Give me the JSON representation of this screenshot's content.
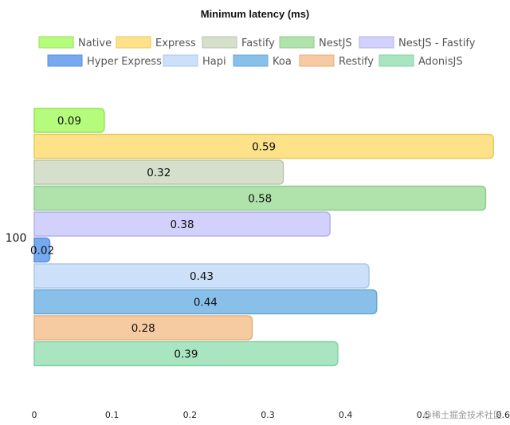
{
  "chart_data": {
    "type": "bar",
    "orientation": "horizontal",
    "title": "Minimum latency (ms)",
    "categories": [
      "100"
    ],
    "xlim": [
      0,
      0.6
    ],
    "x_ticks": [
      "0",
      "0.1",
      "0.2",
      "0.3",
      "0.4",
      "0.5",
      "0.6"
    ],
    "grid": false,
    "legend_position": "top",
    "series": [
      {
        "name": "Native",
        "values": [
          0.09
        ],
        "label": "0.09",
        "color": "#b5fb7c",
        "border": "#97e05a"
      },
      {
        "name": "Express",
        "values": [
          0.59
        ],
        "label": "0.59",
        "color": "#fde28a",
        "border": "#e8c85e"
      },
      {
        "name": "Fastify",
        "values": [
          0.32
        ],
        "label": "0.32",
        "color": "#d5dfcb",
        "border": "#b9c6ad"
      },
      {
        "name": "NestJS",
        "values": [
          0.58
        ],
        "label": "0.58",
        "color": "#b0e2ab",
        "border": "#8fcc89"
      },
      {
        "name": "NestJS - Fastify",
        "values": [
          0.38
        ],
        "label": "0.38",
        "color": "#d2d1fb",
        "border": "#b3b1ef"
      },
      {
        "name": "Hyper Express",
        "values": [
          0.02
        ],
        "label": "0.02",
        "color": "#76a9ef",
        "border": "#5a8fdc"
      },
      {
        "name": "Hapi",
        "values": [
          0.43
        ],
        "label": "0.43",
        "color": "#cce0f9",
        "border": "#a9c7ec"
      },
      {
        "name": "Koa",
        "values": [
          0.44
        ],
        "label": "0.44",
        "color": "#88c0e9",
        "border": "#68a6d6"
      },
      {
        "name": "Restify",
        "values": [
          0.28
        ],
        "label": "0.28",
        "color": "#f6cba1",
        "border": "#e5ae7b"
      },
      {
        "name": "AdonisJS",
        "values": [
          0.39
        ],
        "label": "0.39",
        "color": "#a9e5c0",
        "border": "#86d0a2"
      }
    ]
  },
  "watermark": "@稀土掘金技术社区"
}
